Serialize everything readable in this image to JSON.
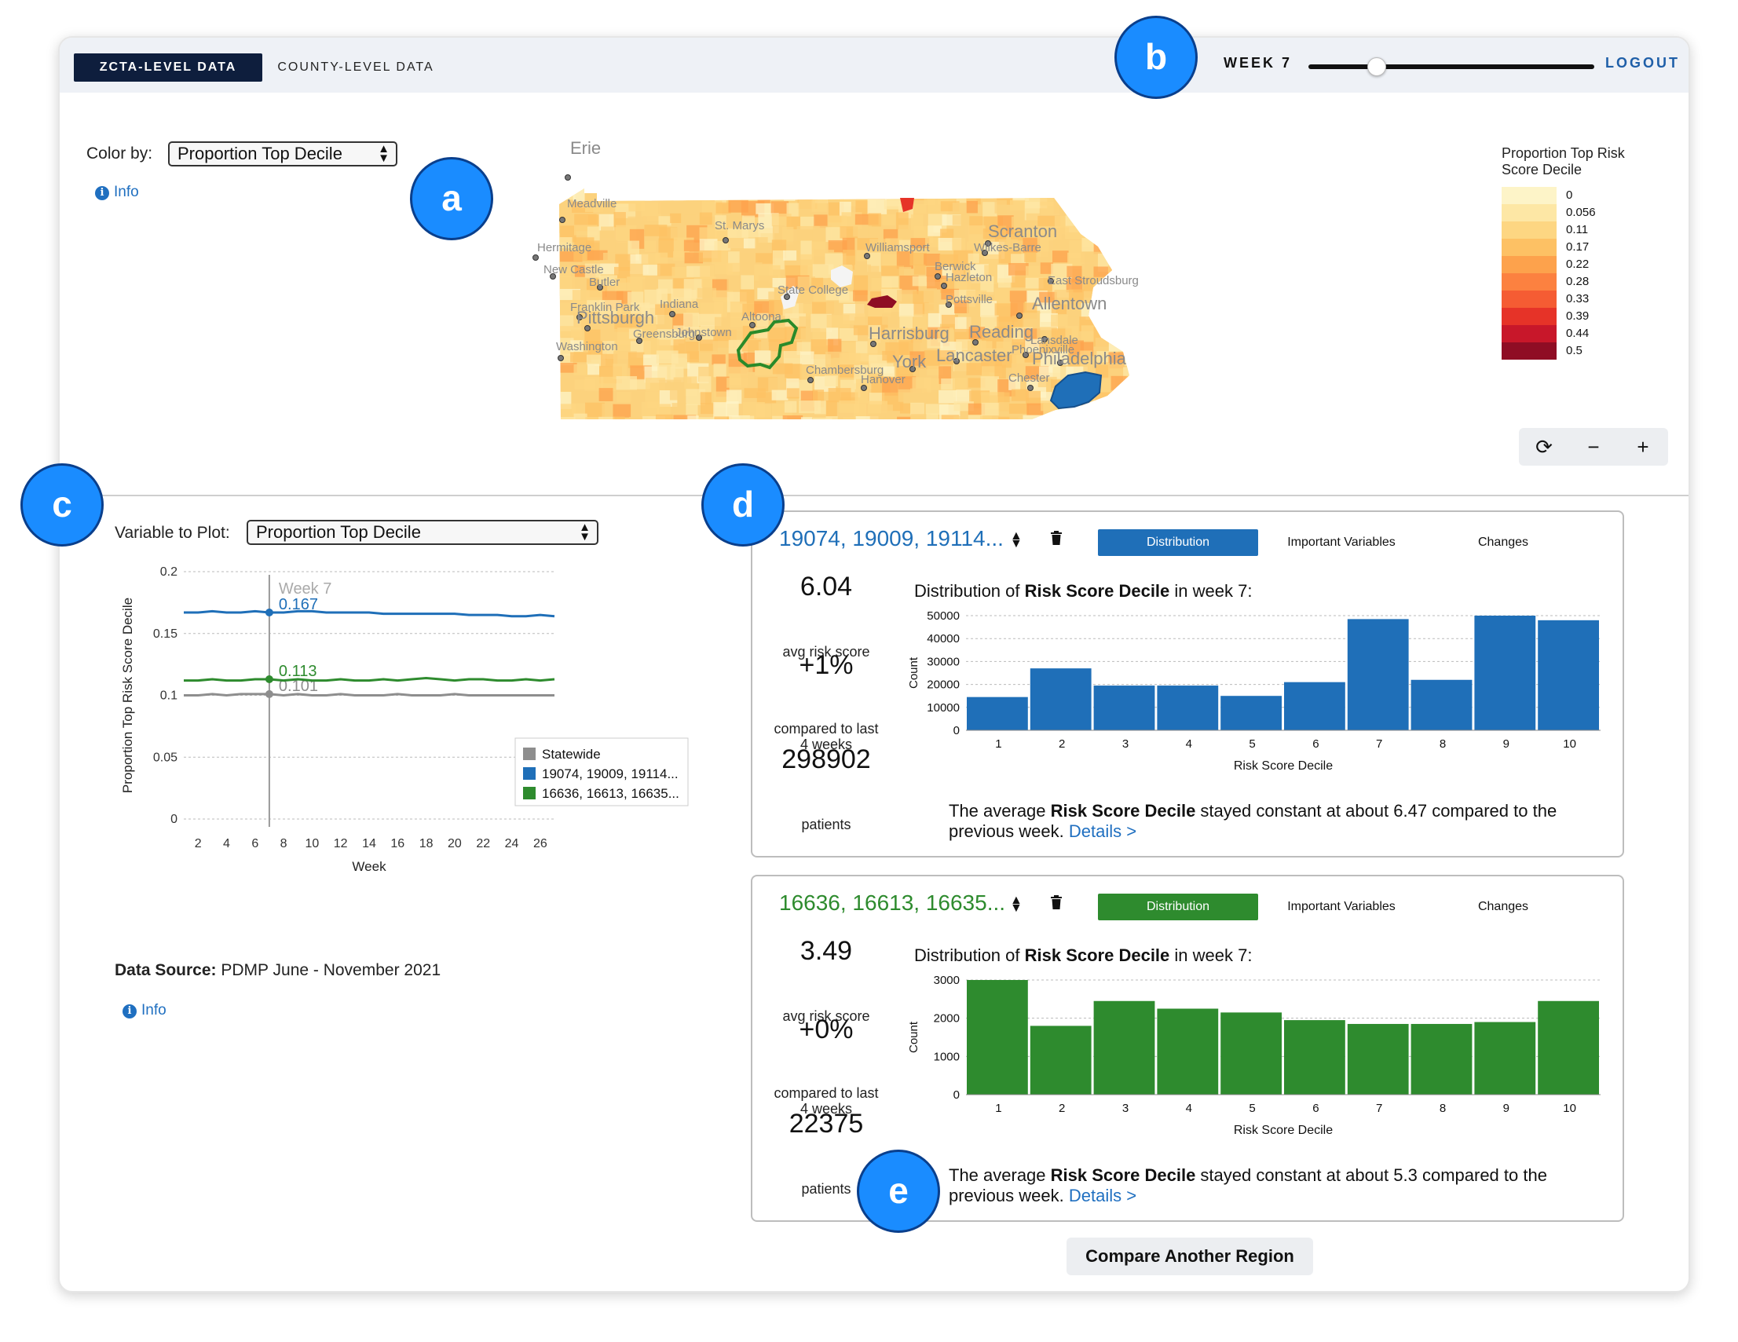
{
  "nav": {
    "tab_zcta": "ZCTA-LEVEL DATA",
    "tab_county": "COUNTY-LEVEL DATA",
    "week_label": "WEEK 7",
    "week_value": 7,
    "week_max": 26,
    "logout": "LOGOUT"
  },
  "map_panel": {
    "color_by_label": "Color by:",
    "color_by_value": "Proportion Top Decile",
    "info": "Info",
    "legend_title_line1": "Proportion Top Risk",
    "legend_title_line2": "Score Decile",
    "legend": [
      {
        "label": "0",
        "color": "#fdf4c8"
      },
      {
        "label": "0.056",
        "color": "#fde7a5"
      },
      {
        "label": "0.11",
        "color": "#fdd682"
      },
      {
        "label": "0.17",
        "color": "#fdc164"
      },
      {
        "label": "0.22",
        "color": "#fda24c"
      },
      {
        "label": "0.28",
        "color": "#fc8140"
      },
      {
        "label": "0.33",
        "color": "#f55c33"
      },
      {
        "label": "0.39",
        "color": "#e63328"
      },
      {
        "label": "0.44",
        "color": "#c8172a"
      },
      {
        "label": "0.5",
        "color": "#8f0d24"
      }
    ],
    "cities": [
      {
        "name": "Erie",
        "big": true
      },
      {
        "name": "Meadville",
        "big": false
      },
      {
        "name": "St. Marys",
        "big": false
      },
      {
        "name": "Scranton",
        "big": true
      },
      {
        "name": "Wilkes-Barre",
        "big": false
      },
      {
        "name": "Williamsport",
        "big": false
      },
      {
        "name": "Hermitage",
        "big": false
      },
      {
        "name": "Berwick",
        "big": false
      },
      {
        "name": "Hazleton",
        "big": false
      },
      {
        "name": "East Stroudsburg",
        "big": false
      },
      {
        "name": "New Castle",
        "big": false
      },
      {
        "name": "Butler",
        "big": false
      },
      {
        "name": "State College",
        "big": false
      },
      {
        "name": "Pottsville",
        "big": false
      },
      {
        "name": "Allentown",
        "big": true
      },
      {
        "name": "Franklin Park",
        "big": false
      },
      {
        "name": "Indiana",
        "big": false
      },
      {
        "name": "Pittsburgh",
        "big": true
      },
      {
        "name": "Altoona",
        "big": false
      },
      {
        "name": "Greensburg",
        "big": false
      },
      {
        "name": "Johnstown",
        "big": false
      },
      {
        "name": "Harrisburg",
        "big": true
      },
      {
        "name": "Reading",
        "big": true
      },
      {
        "name": "Lansdale",
        "big": false
      },
      {
        "name": "Washington",
        "big": false
      },
      {
        "name": "Phoenixville",
        "big": false
      },
      {
        "name": "Lancaster",
        "big": true
      },
      {
        "name": "Philadelphia",
        "big": true
      },
      {
        "name": "Chambersburg",
        "big": false
      },
      {
        "name": "York",
        "big": true
      },
      {
        "name": "Hanover",
        "big": false
      },
      {
        "name": "Chester",
        "big": false
      }
    ],
    "controls": {
      "reset": "⟳",
      "zoom_out": "−",
      "zoom_in": "+"
    }
  },
  "line_panel": {
    "variable_label": "Variable to Plot:",
    "variable_value": "Proportion Top Decile",
    "data_source_label": "Data Source:",
    "data_source_value": " PDMP June - November 2021",
    "info": "Info"
  },
  "chart_data": [
    {
      "type": "line",
      "xlabel": "Week",
      "ylabel": "Proportion Top Risk Score Decile",
      "x_ticks": [
        2,
        4,
        6,
        8,
        10,
        12,
        14,
        16,
        18,
        20,
        22,
        24,
        26
      ],
      "y_ticks": [
        "0",
        "0.05",
        "0.1",
        "0.15",
        "0.2"
      ],
      "ylim": [
        0,
        0.2
      ],
      "xlim": [
        1,
        27
      ],
      "marker_week_label": "Week 7",
      "marker_week": 7,
      "grid": "horizontal dotted",
      "legend_position": "bottom-right",
      "series": [
        {
          "name": "Statewide",
          "color": "#8e8e8e",
          "marker_label": "0.101",
          "x": [
            1,
            2,
            3,
            4,
            5,
            6,
            7,
            8,
            9,
            10,
            11,
            12,
            13,
            14,
            15,
            16,
            17,
            18,
            19,
            20,
            21,
            22,
            23,
            24,
            25,
            26,
            27
          ],
          "values": [
            0.1,
            0.1,
            0.101,
            0.1,
            0.101,
            0.101,
            0.101,
            0.1,
            0.101,
            0.1,
            0.1,
            0.101,
            0.1,
            0.1,
            0.1,
            0.101,
            0.1,
            0.1,
            0.1,
            0.101,
            0.1,
            0.1,
            0.1,
            0.1,
            0.1,
            0.1,
            0.1
          ]
        },
        {
          "name": "19074, 19009, 19114...",
          "color": "#1f6fb8",
          "marker_label": "0.167",
          "x": [
            1,
            2,
            3,
            4,
            5,
            6,
            7,
            8,
            9,
            10,
            11,
            12,
            13,
            14,
            15,
            16,
            17,
            18,
            19,
            20,
            21,
            22,
            23,
            24,
            25,
            26,
            27
          ],
          "values": [
            0.167,
            0.167,
            0.168,
            0.167,
            0.167,
            0.168,
            0.167,
            0.167,
            0.168,
            0.168,
            0.167,
            0.167,
            0.167,
            0.167,
            0.166,
            0.166,
            0.166,
            0.166,
            0.166,
            0.166,
            0.165,
            0.165,
            0.165,
            0.164,
            0.164,
            0.165,
            0.164
          ]
        },
        {
          "name": "16636, 16613, 16635...",
          "color": "#2e8b2e",
          "marker_label": "0.113",
          "x": [
            1,
            2,
            3,
            4,
            5,
            6,
            7,
            8,
            9,
            10,
            11,
            12,
            13,
            14,
            15,
            16,
            17,
            18,
            19,
            20,
            21,
            22,
            23,
            24,
            25,
            26,
            27
          ],
          "values": [
            0.112,
            0.112,
            0.113,
            0.112,
            0.112,
            0.113,
            0.113,
            0.112,
            0.113,
            0.112,
            0.112,
            0.113,
            0.112,
            0.112,
            0.113,
            0.112,
            0.113,
            0.114,
            0.113,
            0.112,
            0.113,
            0.113,
            0.112,
            0.112,
            0.113,
            0.112,
            0.113
          ]
        }
      ]
    },
    {
      "type": "bar",
      "title": "Distribution of Risk Score Decile in week 7:",
      "xlabel": "Risk Score Decile",
      "ylabel": "Count",
      "categories": [
        "1",
        "2",
        "3",
        "4",
        "5",
        "6",
        "7",
        "8",
        "9",
        "10"
      ],
      "values": [
        14500,
        27000,
        19500,
        19500,
        15000,
        21000,
        48500,
        22000,
        50000,
        48000
      ],
      "y_ticks": [
        "0",
        "10000",
        "20000",
        "30000",
        "40000",
        "50000"
      ],
      "ylim": [
        0,
        50000
      ],
      "color": "#1f6fb8"
    },
    {
      "type": "bar",
      "title": "Distribution of Risk Score Decile in week 7:",
      "xlabel": "Risk Score Decile",
      "ylabel": "Count",
      "categories": [
        "1",
        "2",
        "3",
        "4",
        "5",
        "6",
        "7",
        "8",
        "9",
        "10"
      ],
      "values": [
        3000,
        1800,
        2450,
        2250,
        2150,
        1950,
        1850,
        1850,
        1900,
        2450
      ],
      "y_ticks": [
        "0",
        "1000",
        "2000",
        "3000"
      ],
      "ylim": [
        0,
        3000
      ],
      "color": "#2e8b2e"
    }
  ],
  "cards": [
    {
      "title": "19074, 19009, 19114...",
      "color": "#1f6fb8",
      "tabs": [
        "Distribution",
        "Important Variables",
        "Changes"
      ],
      "dist_prefix": "Distribution of ",
      "dist_bold": "Risk Score Decile",
      "dist_suffix": " in week 7:",
      "avg": "6.04",
      "avg_label": "avg risk score",
      "change": "+1%",
      "change_label_1": "compared to last",
      "change_label_2": "4 weeks",
      "patients": "298902",
      "patients_label": "patients",
      "summary_pre": "The average ",
      "summary_bold": "Risk Score Decile",
      "summary_post": " stayed constant at about 6.47 compared to the previous week. ",
      "details": "Details >"
    },
    {
      "title": "16636, 16613, 16635...",
      "color": "#2e8b2e",
      "tabs": [
        "Distribution",
        "Important Variables",
        "Changes"
      ],
      "dist_prefix": "Distribution of ",
      "dist_bold": "Risk Score Decile",
      "dist_suffix": " in week 7:",
      "avg": "3.49",
      "avg_label": "avg risk score",
      "change": "+0%",
      "change_label_1": "compared to last",
      "change_label_2": "4 weeks",
      "patients": "22375",
      "patients_label": "patients",
      "summary_pre": "The average ",
      "summary_bold": "Risk Score Decile",
      "summary_post": " stayed constant at about 5.3 compared to the previous week. ",
      "details": "Details >"
    }
  ],
  "compare_button": "Compare Another Region",
  "badges": [
    "a",
    "b",
    "c",
    "d",
    "e"
  ]
}
